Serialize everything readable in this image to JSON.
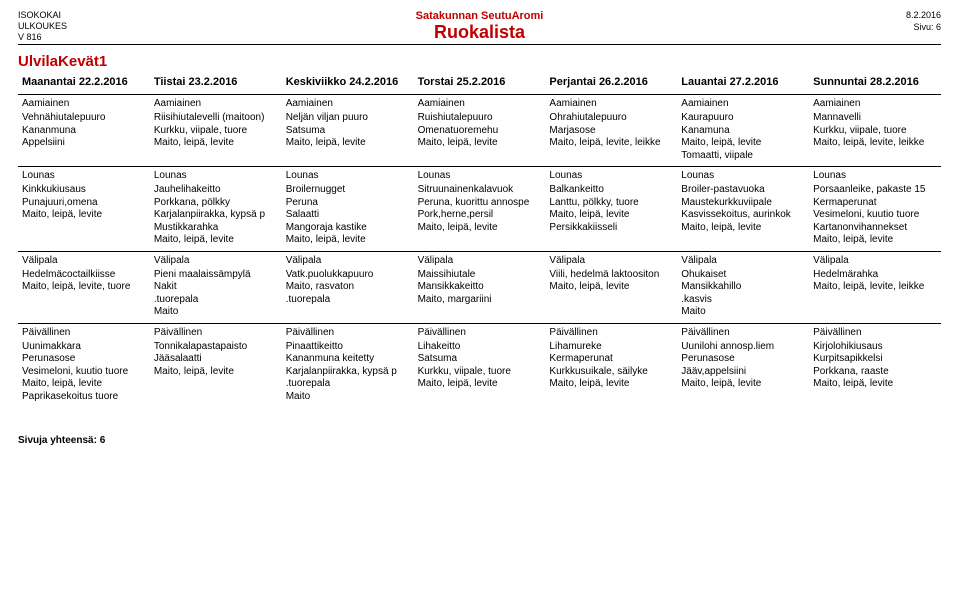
{
  "header": {
    "org": "ISOKOKAI",
    "code": "ULKOUKES",
    "version": "V 816",
    "system": "Satakunnan SeutuAromi",
    "title": "Ruokalista",
    "date": "8.2.2016",
    "page": "Sivu: 6"
  },
  "menu_title": "UlvilaKevät1",
  "days": [
    {
      "label": "Maanantai 22.2.2016"
    },
    {
      "label": "Tiistai 23.2.2016"
    },
    {
      "label": "Keskiviikko 24.2.2016"
    },
    {
      "label": "Torstai 25.2.2016"
    },
    {
      "label": "Perjantai 26.2.2016"
    },
    {
      "label": "Lauantai 27.2.2016"
    },
    {
      "label": "Sunnuntai 28.2.2016"
    }
  ],
  "meals": [
    {
      "name": "Aamiainen",
      "cols": [
        [
          "Vehnähiutalepuuro",
          "Kananmuna",
          "Appelsiini"
        ],
        [
          "Riisihiutalevelli (maitoon)",
          "Kurkku, viipale, tuore",
          "Maito, leipä, levite"
        ],
        [
          "Neljän viljan puuro",
          "Satsuma",
          "Maito, leipä, levite"
        ],
        [
          "Ruishiutalepuuro",
          "Omenatuoremehu",
          "Maito, leipä, levite"
        ],
        [
          "Ohrahiutalepuuro",
          "Marjasose",
          "Maito, leipä, levite, leikke"
        ],
        [
          "Kaurapuuro",
          "Kanamuna",
          "Maito, leipä, levite",
          "Tomaatti, viipale"
        ],
        [
          "Mannavelli",
          "Kurkku, viipale, tuore",
          "Maito, leipä, levite, leikke"
        ]
      ]
    },
    {
      "name": "Lounas",
      "cols": [
        [
          "Kinkkukiusaus",
          "Punajuuri,omena",
          "Maito, leipä, levite"
        ],
        [
          "Jauhelihakeitto",
          "Porkkana, pölkky",
          "Karjalanpiirakka, kypsä p",
          "Mustikkarahka",
          "Maito, leipä, levite"
        ],
        [
          "Broilernugget",
          "Peruna",
          "Salaatti",
          "Mangoraja kastike",
          "Maito, leipä, levite"
        ],
        [
          "Sitruunainenkalavuok",
          "Peruna, kuorittu annospe",
          "Pork,herne,persil",
          "Maito, leipä, levite"
        ],
        [
          "Balkankeitto",
          "Lanttu, pölkky, tuore",
          "Maito, leipä, levite",
          "Persikkakiisseli"
        ],
        [
          "Broiler-pastavuoka",
          "Maustekurkkuviipale",
          "Kasvissekoitus, aurinkok",
          "Maito, leipä, levite"
        ],
        [
          "Porsaanleike, pakaste 15",
          "Kermaperunat",
          "Vesimeloni, kuutio tuore",
          "Kartanonvihannekset",
          "Maito, leipä, levite"
        ]
      ]
    },
    {
      "name": "Välipala",
      "cols": [
        [
          "Hedelmäcoctailkiisse",
          "Maito, leipä, levite, tuore"
        ],
        [
          "Pieni maalaissämpylä",
          "Nakit",
          ".tuorepala",
          "Maito"
        ],
        [
          "Vatk.puolukkapuuro",
          "Maito, rasvaton",
          ".tuorepala"
        ],
        [
          "Maissihiutale",
          "Mansikkakeitto",
          "Maito, margariini"
        ],
        [
          "Viili, hedelmä laktoositon",
          "Maito, leipä, levite"
        ],
        [
          "Ohukaiset",
          "Mansikkahillo",
          ".kasvis",
          "Maito"
        ],
        [
          "Hedelmärahka",
          "Maito, leipä, levite, leikke"
        ]
      ]
    },
    {
      "name": "Päivällinen",
      "cols": [
        [
          "Uunimakkara",
          "Perunasose",
          "Vesimeloni, kuutio tuore",
          "Maito, leipä, levite",
          "Paprikasekoitus tuore"
        ],
        [
          "Tonnikalapastapaisto",
          "Jääsalaatti",
          "Maito, leipä, levite"
        ],
        [
          "Pinaattikeitto",
          "Kananmuna keitetty",
          "Karjalanpiirakka, kypsä p",
          ".tuorepala",
          "Maito"
        ],
        [
          "Lihakeitto",
          "Satsuma",
          "Kurkku, viipale, tuore",
          "Maito, leipä, levite"
        ],
        [
          "Lihamureke",
          "Kermaperunat",
          "Kurkkusuikale, säilyke",
          "Maito, leipä, levite"
        ],
        [
          "Uunilohi annosp.liem",
          "Perunasose",
          "Jääv,appelsiini",
          "Maito, leipä, levite"
        ],
        [
          "Kirjolohikiusaus",
          "Kurpitsapikkelsi",
          "Porkkana, raaste",
          "Maito, leipä, levite"
        ]
      ]
    }
  ],
  "footer": "Sivuja yhteensä: 6"
}
